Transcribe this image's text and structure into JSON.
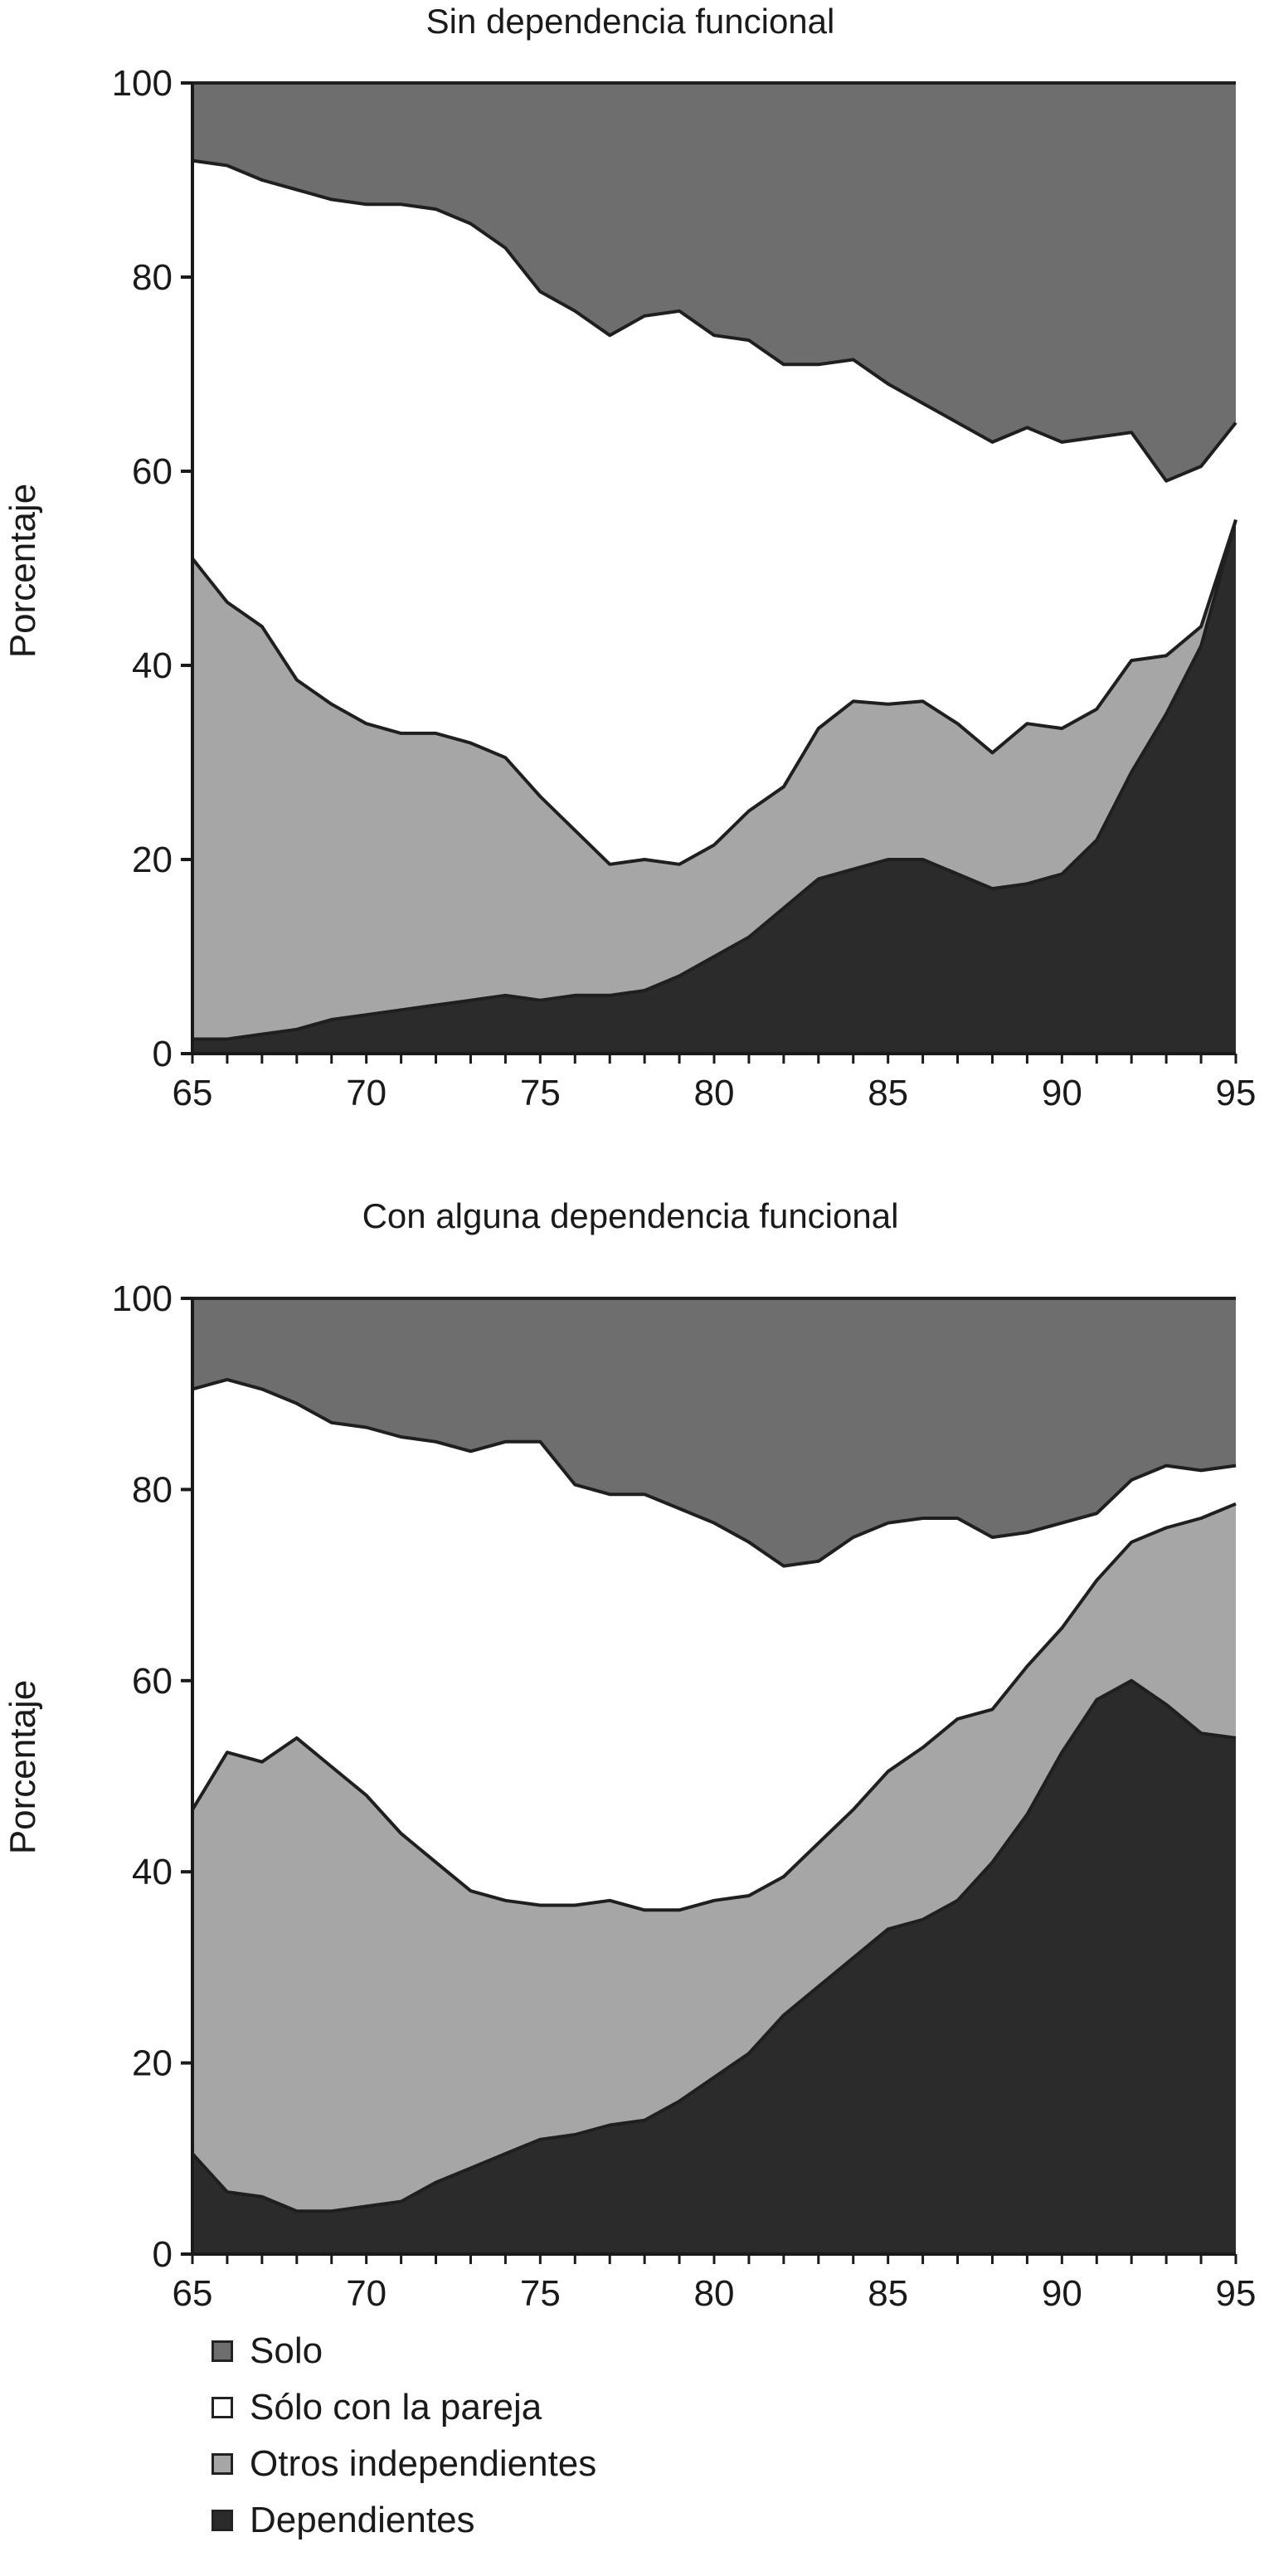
{
  "chart_data": [
    {
      "type": "area",
      "title": "Sin dependencia funcional",
      "xlabel": "",
      "ylabel": "Porcentaje",
      "xlim": [
        65,
        95
      ],
      "ylim": [
        0,
        100
      ],
      "xticks": [
        65,
        70,
        75,
        80,
        85,
        90,
        95
      ],
      "yticks": [
        0,
        20,
        40,
        60,
        80,
        100
      ],
      "stacked": true,
      "x": [
        65,
        66,
        67,
        68,
        69,
        70,
        71,
        72,
        73,
        74,
        75,
        76,
        77,
        78,
        79,
        80,
        81,
        82,
        83,
        84,
        85,
        86,
        87,
        88,
        89,
        90,
        91,
        92,
        93,
        94,
        95
      ],
      "series": [
        {
          "name": "Dependientes",
          "color": "#2b2b2b",
          "values": [
            1.5,
            1.5,
            2,
            2.5,
            3.5,
            4,
            4.5,
            5,
            5.5,
            6,
            5.5,
            6,
            6,
            6.5,
            8,
            10,
            12,
            15,
            18,
            19,
            20,
            20,
            18.5,
            17,
            17.5,
            18.5,
            22,
            29,
            35,
            42,
            55
          ]
        },
        {
          "name": "Otros independientes",
          "color": "#a6a6a6",
          "values": [
            49.5,
            45,
            42,
            36,
            32.5,
            30,
            28.5,
            28,
            26.5,
            24.5,
            21,
            17,
            13.5,
            13.5,
            11.5,
            11.5,
            13,
            12.5,
            15.5,
            17.3,
            16,
            16.3,
            15.5,
            14,
            16.5,
            15,
            13.5,
            11.5,
            6,
            2,
            0
          ]
        },
        {
          "name": "Sólo con la pareja",
          "color": "#ffffff",
          "values": [
            41,
            45,
            46,
            50.5,
            52,
            53.5,
            54.5,
            54,
            53.5,
            52.5,
            52,
            53.5,
            54.5,
            56,
            57,
            52.5,
            48.5,
            43.5,
            37.5,
            35.2,
            33,
            30.7,
            31,
            32,
            30.5,
            29.5,
            28,
            23.5,
            18,
            16.5,
            10
          ]
        },
        {
          "name": "Solo",
          "color": "#6e6e6e",
          "values": [
            8,
            8.5,
            10,
            11,
            12,
            12.5,
            12.5,
            13,
            14.5,
            17,
            21.5,
            23.5,
            26,
            24,
            23.5,
            26,
            26.5,
            29,
            29,
            28.5,
            31,
            33,
            35,
            37,
            35.5,
            37,
            36.5,
            36,
            41,
            39.5,
            35
          ]
        }
      ]
    },
    {
      "type": "area",
      "title": "Con alguna dependencia funcional",
      "xlabel": "",
      "ylabel": "Porcentaje",
      "xlim": [
        65,
        95
      ],
      "ylim": [
        0,
        100
      ],
      "xticks": [
        65,
        70,
        75,
        80,
        85,
        90,
        95
      ],
      "yticks": [
        0,
        20,
        40,
        60,
        80,
        100
      ],
      "stacked": true,
      "x": [
        65,
        66,
        67,
        68,
        69,
        70,
        71,
        72,
        73,
        74,
        75,
        76,
        77,
        78,
        79,
        80,
        81,
        82,
        83,
        84,
        85,
        86,
        87,
        88,
        89,
        90,
        91,
        92,
        93,
        94,
        95
      ],
      "series": [
        {
          "name": "Dependientes",
          "color": "#2b2b2b",
          "values": [
            10.5,
            6.5,
            6,
            4.5,
            4.5,
            5,
            5.5,
            7.5,
            9,
            10.5,
            12,
            12.5,
            13.5,
            14,
            16,
            18.5,
            21,
            25,
            28,
            31,
            34,
            35,
            37,
            41,
            46,
            52.5,
            58,
            60,
            57.5,
            54.5,
            54
          ]
        },
        {
          "name": "Otros independientes",
          "color": "#a6a6a6",
          "values": [
            36,
            46,
            45.5,
            49.5,
            46.5,
            43,
            38.5,
            33.5,
            29,
            26.5,
            24.5,
            24,
            23.5,
            22,
            20,
            18.5,
            16.5,
            14.5,
            15,
            15.5,
            16.5,
            18,
            19,
            16,
            15.5,
            13,
            12.5,
            14.5,
            18.5,
            22.5,
            24.5
          ]
        },
        {
          "name": "Sólo con la pareja",
          "color": "#ffffff",
          "values": [
            44,
            39,
            39,
            35,
            36,
            38.5,
            41.5,
            44,
            46,
            48,
            48.5,
            44,
            42.5,
            43.5,
            42,
            39.5,
            37,
            32.5,
            29.5,
            28.5,
            26,
            24,
            21,
            18,
            14,
            11,
            7,
            6.5,
            6.5,
            5,
            4
          ]
        },
        {
          "name": "Solo",
          "color": "#6e6e6e",
          "values": [
            9.5,
            8.5,
            9.5,
            11,
            13,
            13.5,
            14.5,
            15,
            16,
            15,
            15,
            19.5,
            20.5,
            20.5,
            22,
            23.5,
            25.5,
            28,
            27.5,
            25,
            23.5,
            23,
            23,
            25,
            24.5,
            23.5,
            22.5,
            19,
            17.5,
            18,
            17.5
          ]
        }
      ]
    }
  ],
  "legend": {
    "items": [
      {
        "label": "Solo",
        "color": "#6e6e6e"
      },
      {
        "label": "Sólo con la pareja",
        "color": "#ffffff"
      },
      {
        "label": "Otros independientes",
        "color": "#a6a6a6"
      },
      {
        "label": "Dependientes",
        "color": "#2b2b2b"
      }
    ]
  }
}
